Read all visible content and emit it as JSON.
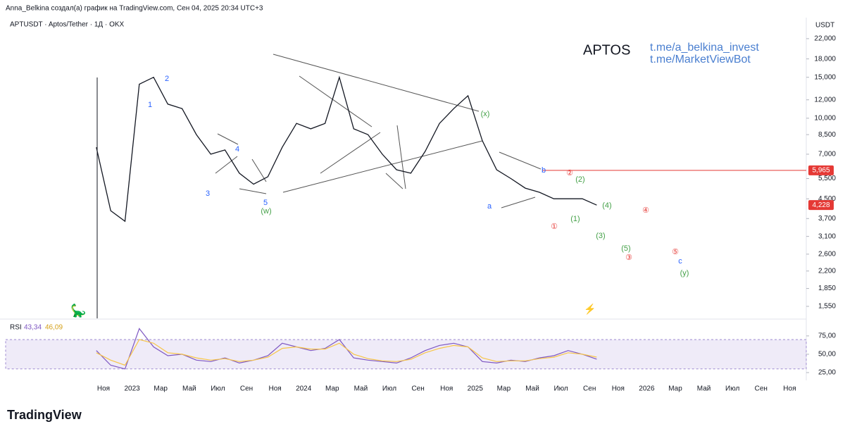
{
  "header": {
    "credit": "Anna_Belkina создал(а) график на TradingView.com, Сен 04, 2025 20:34 UTC+3",
    "brand": "TradingView"
  },
  "time_axis": [
    "Ноя",
    "2023",
    "Мар",
    "Май",
    "Июл",
    "Сен",
    "Ноя",
    "2024",
    "Мар",
    "Май",
    "Июл",
    "Сен",
    "Ноя",
    "2025",
    "Мар",
    "Май",
    "Июл",
    "Сен",
    "Ноя",
    "2026",
    "Мар",
    "Май",
    "Июл",
    "Сен",
    "Ноя"
  ],
  "chart_data": [
    {
      "type": "line",
      "title": "APTUSDT · Aptos/Tether · 1Д · OKX",
      "y_axis_label": "USDT",
      "watermark": "APTOS",
      "links": [
        "t.me/a_belkina_invest",
        "t.me/MarketViewBot"
      ],
      "log_scale": true,
      "color": "#131722",
      "x": [
        "2022-10",
        "2022-11",
        "2022-12",
        "2023-01",
        "2023-02",
        "2023-03",
        "2023-04",
        "2023-05",
        "2023-06",
        "2023-07",
        "2023-08",
        "2023-09",
        "2023-10",
        "2023-11",
        "2023-12",
        "2024-01",
        "2024-02",
        "2024-03",
        "2024-04",
        "2024-05",
        "2024-06",
        "2024-07",
        "2024-08",
        "2024-09",
        "2024-10",
        "2024-11",
        "2024-12",
        "2025-01",
        "2025-02",
        "2025-03",
        "2025-04",
        "2025-05",
        "2025-06",
        "2025-07",
        "2025-08",
        "2025-09"
      ],
      "values": [
        7.5,
        4.0,
        3.6,
        14,
        15,
        11.5,
        11,
        8.5,
        7.0,
        7.3,
        5.8,
        5.2,
        5.6,
        7.5,
        9.5,
        9.0,
        9.5,
        15,
        9.0,
        8.5,
        7.0,
        6.0,
        5.8,
        7.2,
        9.5,
        11.0,
        12.5,
        8.0,
        6.0,
        5.5,
        5.0,
        4.8,
        4.5,
        4.5,
        4.5,
        4.228
      ],
      "ylim": [
        1.376,
        27.1
      ],
      "yticks": [
        {
          "value": 22,
          "label": "22,000"
        },
        {
          "value": 18,
          "label": "18,000"
        },
        {
          "value": 15,
          "label": "15,000"
        },
        {
          "value": 12,
          "label": "12,000"
        },
        {
          "value": 10,
          "label": "10,000"
        },
        {
          "value": 8.5,
          "label": "8,500"
        },
        {
          "value": 7,
          "label": "7,000"
        },
        {
          "value": 5.5,
          "label": "5,500"
        },
        {
          "value": 4.5,
          "label": "4,500"
        },
        {
          "value": 3.7,
          "label": "3,700"
        },
        {
          "value": 3.1,
          "label": "3,100"
        },
        {
          "value": 2.6,
          "label": "2,600"
        },
        {
          "value": 2.2,
          "label": "2,200"
        },
        {
          "value": 1.85,
          "label": "1,850"
        },
        {
          "value": 1.55,
          "label": "1,550"
        }
      ],
      "last_price": {
        "value": 4.228,
        "label": "4,228"
      },
      "level": {
        "value": 5.965,
        "label": "5,965"
      },
      "annotations": [
        "1",
        "2",
        "3",
        "4",
        "5",
        "(w)",
        "(x)",
        "a",
        "b",
        "(1)",
        "(2)",
        "(3)",
        "(4)",
        "(5)",
        "c",
        "(y)",
        "①",
        "②",
        "③",
        "④",
        "⑤"
      ]
    },
    {
      "type": "line",
      "title": "RSI",
      "current": [
        {
          "value": 43.34,
          "label": "43,34"
        },
        {
          "value": 46.09,
          "label": "46,09"
        }
      ],
      "series": [
        {
          "color": "#7e57c2",
          "values": [
            55,
            35,
            30,
            85,
            60,
            48,
            50,
            42,
            40,
            45,
            38,
            42,
            48,
            65,
            60,
            55,
            58,
            70,
            45,
            42,
            40,
            38,
            45,
            55,
            62,
            65,
            60,
            40,
            38,
            42,
            40,
            45,
            48,
            55,
            50,
            43.34
          ]
        },
        {
          "color": "#f7c548",
          "values": [
            52,
            42,
            35,
            70,
            65,
            52,
            50,
            45,
            42,
            44,
            40,
            42,
            46,
            58,
            60,
            57,
            57,
            65,
            50,
            44,
            41,
            40,
            43,
            52,
            58,
            62,
            60,
            45,
            40,
            41,
            41,
            44,
            46,
            52,
            50,
            46.09
          ]
        }
      ],
      "band": [
        30,
        70
      ],
      "ylim": [
        14.4,
        96
      ],
      "yticks": [
        {
          "value": 75,
          "label": "75,00"
        },
        {
          "value": 50,
          "label": "50,00"
        },
        {
          "value": 25,
          "label": "25,00"
        }
      ]
    }
  ]
}
